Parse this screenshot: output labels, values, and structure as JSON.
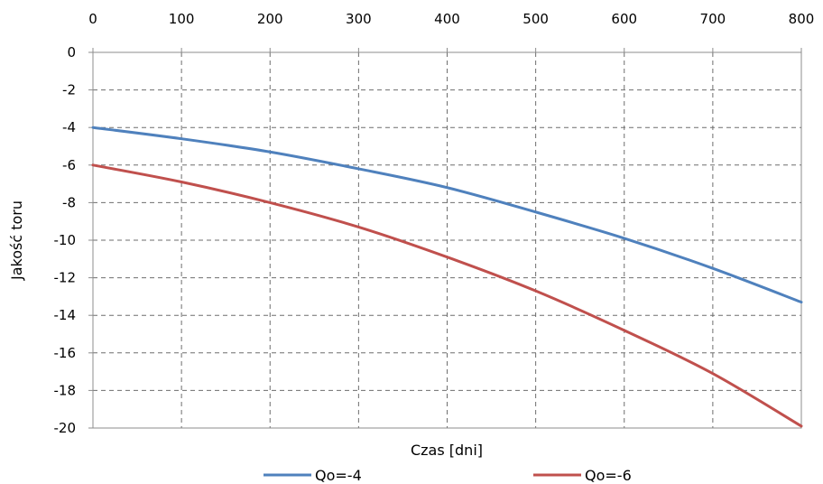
{
  "chart_data": {
    "type": "line",
    "xlabel": "Czas [dni]",
    "ylabel": "Jakość toru",
    "xlim": [
      0,
      800
    ],
    "ylim": [
      -20,
      0
    ],
    "x_axis_position": "top",
    "grid": true,
    "legend_position": "bottom",
    "x_ticks": [
      "0",
      "100",
      "200",
      "300",
      "400",
      "500",
      "600",
      "700",
      "800"
    ],
    "y_ticks": [
      "0",
      "-2",
      "-4",
      "-6",
      "-8",
      "-10",
      "-12",
      "-14",
      "-16",
      "-18",
      "-20"
    ],
    "x": [
      0,
      100,
      200,
      300,
      400,
      500,
      600,
      700,
      800
    ],
    "series": [
      {
        "name": "Qo=-4",
        "color": "#4f81bd",
        "values": [
          -4.0,
          -4.6,
          -5.3,
          -6.2,
          -7.2,
          -8.5,
          -9.9,
          -11.5,
          -13.3
        ]
      },
      {
        "name": "Qo=-6",
        "color": "#c0504d",
        "values": [
          -6.0,
          -6.9,
          -8.0,
          -9.3,
          -10.9,
          -12.7,
          -14.8,
          -17.1,
          -19.9
        ]
      }
    ]
  }
}
